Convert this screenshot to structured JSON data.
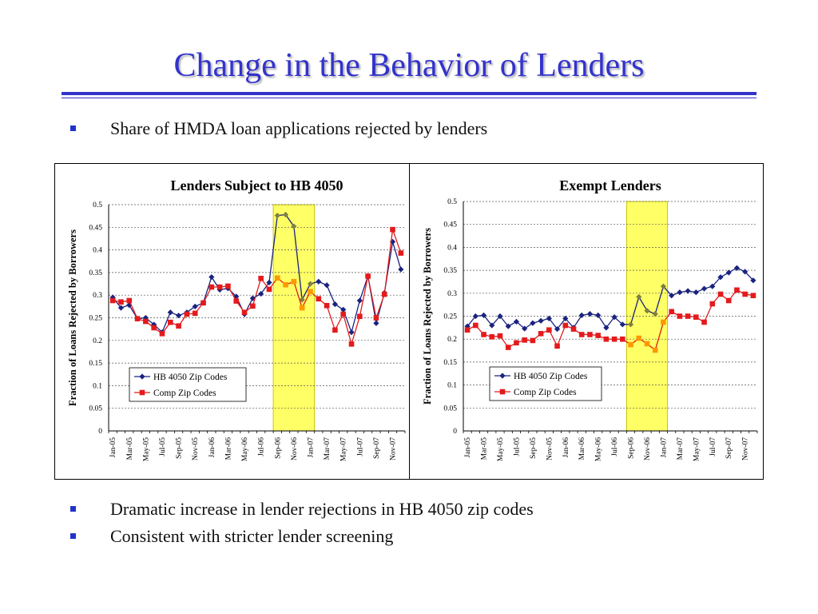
{
  "slide": {
    "title": "Change in the Behavior of Lenders",
    "bullets": [
      "Share of HMDA loan applications rejected by lenders",
      "Dramatic increase in lender rejections in HB 4050 zip codes",
      "Consistent with stricter lender screening"
    ]
  },
  "colors": {
    "title": "#3333cc",
    "hb_series": "#1a237e",
    "comp_series": "#e41a1c",
    "highlight_fill": "#ffff66",
    "highlight_border": "#c8c800",
    "comp_highlight_points": "#ff9900",
    "hb_highlight_points": "#808040"
  },
  "chart_data": [
    {
      "type": "line",
      "title": "Lenders Subject to HB 4050",
      "ylabel": "Fraction of Loans Rejected by Borrowers",
      "xlabel": "",
      "ylim": [
        0,
        0.5
      ],
      "yticks": [
        0,
        0.05,
        0.1,
        0.15,
        0.2,
        0.25,
        0.3,
        0.35,
        0.4,
        0.45,
        0.5
      ],
      "ytick_labels": [
        "0",
        "0.05",
        "0.1",
        "0.15",
        "0.2",
        "0.25",
        "0.3",
        "0.35",
        "0.4",
        "0.45",
        "0.5"
      ],
      "grid": true,
      "legend_position": "lower-left",
      "highlight_range": [
        "Sep-06",
        "Jan-07"
      ],
      "x": [
        "Jan-05",
        "Feb-05",
        "Mar-05",
        "Apr-05",
        "May-05",
        "Jun-05",
        "Jul-05",
        "Aug-05",
        "Sep-05",
        "Oct-05",
        "Nov-05",
        "Dec-05",
        "Jan-06",
        "Feb-06",
        "Mar-06",
        "Apr-06",
        "May-06",
        "Jun-06",
        "Jul-06",
        "Aug-06",
        "Sep-06",
        "Oct-06",
        "Nov-06",
        "Dec-06",
        "Jan-07",
        "Feb-07",
        "Mar-07",
        "Apr-07",
        "May-07",
        "Jun-07",
        "Jul-07",
        "Aug-07",
        "Sep-07",
        "Oct-07",
        "Nov-07",
        "Dec-07"
      ],
      "tick_labels": [
        "Jan-05",
        "Mar-05",
        "May-05",
        "Jul-05",
        "Sep-05",
        "Nov-05",
        "Jan-06",
        "Mar-06",
        "May-06",
        "Jul-06",
        "Sep-06",
        "Nov-06",
        "Jan-07",
        "Mar-07",
        "May-07",
        "Jul-07",
        "Sep-07",
        "Nov-07"
      ],
      "series": [
        {
          "name": "HB 4050 Zip Codes",
          "marker": "diamond",
          "values": [
            0.295,
            0.272,
            0.278,
            0.248,
            0.25,
            0.235,
            0.218,
            0.262,
            0.255,
            0.262,
            0.275,
            0.283,
            0.34,
            0.312,
            0.315,
            0.297,
            0.258,
            0.293,
            0.303,
            0.328,
            0.476,
            0.478,
            0.452,
            0.29,
            0.325,
            0.33,
            0.322,
            0.28,
            0.268,
            0.218,
            0.288,
            0.342,
            0.238,
            0.305,
            0.418,
            0.357
          ]
        },
        {
          "name": "Comp Zip Codes",
          "marker": "square",
          "values": [
            0.288,
            0.285,
            0.288,
            0.248,
            0.242,
            0.228,
            0.215,
            0.24,
            0.232,
            0.258,
            0.26,
            0.283,
            0.318,
            0.318,
            0.32,
            0.287,
            0.262,
            0.276,
            0.337,
            0.313,
            0.338,
            0.323,
            0.33,
            0.272,
            0.308,
            0.292,
            0.277,
            0.223,
            0.258,
            0.192,
            0.253,
            0.342,
            0.25,
            0.302,
            0.445,
            0.393
          ]
        }
      ]
    },
    {
      "type": "line",
      "title": "Exempt Lenders",
      "ylabel": "Fraction of Loans Rejected by Borrowers",
      "xlabel": "",
      "ylim": [
        0,
        0.5
      ],
      "yticks": [
        0,
        0.05,
        0.1,
        0.15,
        0.2,
        0.25,
        0.3,
        0.35,
        0.4,
        0.45,
        0.5
      ],
      "ytick_labels": [
        "0",
        "0.05",
        "0.1",
        "0.15",
        "0.2",
        "0.25",
        "0.3",
        "0.35",
        "0.4",
        "0.45",
        "0.5"
      ],
      "grid": true,
      "legend_position": "lower-left",
      "highlight_range": [
        "Sep-06",
        "Jan-07"
      ],
      "x": [
        "Jan-05",
        "Feb-05",
        "Mar-05",
        "Apr-05",
        "May-05",
        "Jun-05",
        "Jul-05",
        "Aug-05",
        "Sep-05",
        "Oct-05",
        "Nov-05",
        "Dec-05",
        "Jan-06",
        "Feb-06",
        "Mar-06",
        "Apr-06",
        "May-06",
        "Jun-06",
        "Jul-06",
        "Aug-06",
        "Sep-06",
        "Oct-06",
        "Nov-06",
        "Dec-06",
        "Jan-07",
        "Feb-07",
        "Mar-07",
        "Apr-07",
        "May-07",
        "Jun-07",
        "Jul-07",
        "Aug-07",
        "Sep-07",
        "Oct-07",
        "Nov-07",
        "Dec-07"
      ],
      "tick_labels": [
        "Jan-05",
        "Mar-05",
        "May-05",
        "Jul-05",
        "Sep-05",
        "Nov-05",
        "Jan-06",
        "Mar-06",
        "May-06",
        "Jul-06",
        "Sep-06",
        "Nov-06",
        "Jan-07",
        "Mar-07",
        "May-07",
        "Jul-07",
        "Sep-07",
        "Nov-07"
      ],
      "series": [
        {
          "name": "HB 4050 Zip Codes",
          "marker": "diamond",
          "values": [
            0.228,
            0.25,
            0.252,
            0.23,
            0.25,
            0.228,
            0.238,
            0.223,
            0.235,
            0.24,
            0.245,
            0.222,
            0.245,
            0.225,
            0.252,
            0.255,
            0.252,
            0.225,
            0.248,
            0.232,
            0.232,
            0.292,
            0.262,
            0.255,
            0.315,
            0.295,
            0.302,
            0.305,
            0.302,
            0.31,
            0.315,
            0.335,
            0.345,
            0.355,
            0.347,
            0.328
          ]
        },
        {
          "name": "Comp Zip Codes",
          "marker": "square",
          "values": [
            0.22,
            0.23,
            0.21,
            0.205,
            0.207,
            0.182,
            0.192,
            0.198,
            0.197,
            0.212,
            0.22,
            0.185,
            0.23,
            0.222,
            0.21,
            0.21,
            0.208,
            0.2,
            0.2,
            0.2,
            0.188,
            0.202,
            0.19,
            0.176,
            0.237,
            0.26,
            0.25,
            0.25,
            0.248,
            0.237,
            0.277,
            0.298,
            0.284,
            0.307,
            0.298,
            0.295
          ]
        }
      ]
    }
  ]
}
